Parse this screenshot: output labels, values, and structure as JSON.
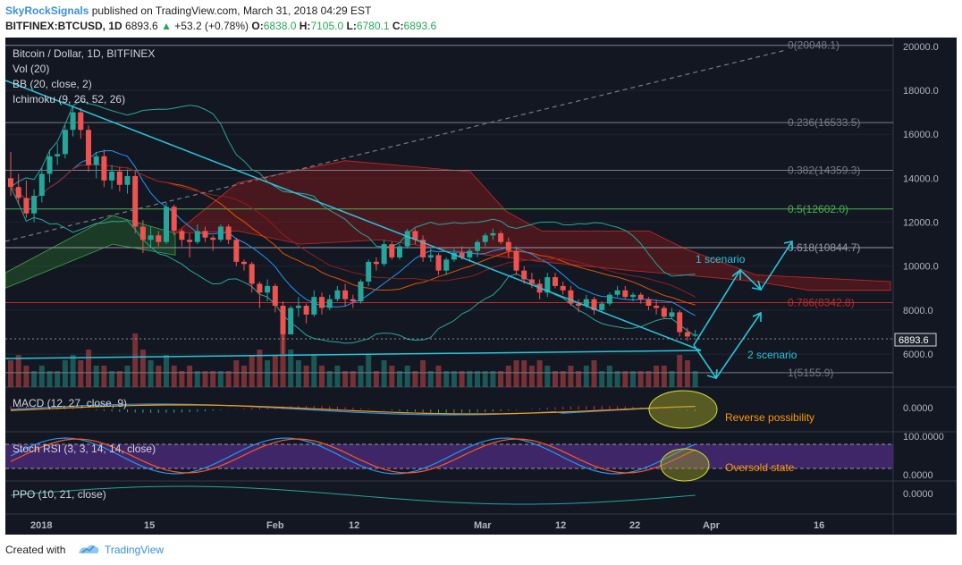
{
  "header": {
    "publisher": "SkyRockSignals",
    "published_text": "published on TradingView.com, March 31, 2018 04:29 EST",
    "symbol": "BITFINEX:BTCUSD, 1D",
    "last": "6893.6",
    "change": "+53.2 (+0.78%)",
    "o_label": "O:",
    "o": "6838.0",
    "h_label": "H:",
    "h": "7105.0",
    "l_label": "L:",
    "l": "6780.1",
    "c_label": "C:",
    "c": "6893.6"
  },
  "legend": {
    "title": "Bitcoin / Dollar, 1D, BITFINEX",
    "vol": "Vol (20)",
    "bb": "BB (20, close, 2)",
    "ichimoku": "Ichimoku (9, 26, 52, 26)"
  },
  "indicators": {
    "macd": "MACD (12, 27, close, 9)",
    "stoch": "Stoch RSI (3, 3, 14, 14, close)",
    "ppo": "PPO (10, 21, close)"
  },
  "annotations": {
    "scenario1": "1 scenario",
    "scenario2": "2 scenario",
    "reverse": "Reverse possibility",
    "oversold": "Oversold state"
  },
  "fib_levels": [
    {
      "label": "0(20048.1)",
      "price": 20048.1,
      "color": "#787b86"
    },
    {
      "label": "0.236(16533.5)",
      "price": 16533.5,
      "color": "#787b86"
    },
    {
      "label": "0.382(14359.3)",
      "price": 14359.3,
      "color": "#787b86"
    },
    {
      "label": "0.5(12602.0)",
      "price": 12602.0,
      "color": "#4caf50"
    },
    {
      "label": "0.618(10844.7)",
      "price": 10844.7,
      "color": "#9598a1"
    },
    {
      "label": "0.786(8342.8)",
      "price": 8342.8,
      "color": "#c62828"
    },
    {
      "label": "1(5155.9)",
      "price": 5155.9,
      "color": "#787b86"
    }
  ],
  "price_axis": {
    "ticks": [
      "20000.0",
      "18000.0",
      "16000.0",
      "14000.0",
      "12000.0",
      "10000.0",
      "8000.0",
      "6000.0"
    ],
    "last_price_label": "6893.6",
    "macd_tick": "0.0000",
    "stoch_ticks": [
      "100.0000",
      "0.0000"
    ],
    "ppo_tick": "0.0000"
  },
  "time_axis": [
    "2018",
    "15",
    "Feb",
    "12",
    "Mar",
    "12",
    "22",
    "Apr",
    "16"
  ],
  "chart_data": {
    "type": "candlestick",
    "title": "Bitcoin / Dollar, 1D, BITFINEX",
    "ylim": [
      4500,
      20400
    ],
    "candles": [
      [
        14000,
        15200,
        13200,
        13600
      ],
      [
        13600,
        14200,
        12800,
        13100
      ],
      [
        13100,
        13900,
        12200,
        12400
      ],
      [
        12400,
        13500,
        12000,
        13200
      ],
      [
        13200,
        14500,
        12900,
        14200
      ],
      [
        14200,
        15300,
        13800,
        15000
      ],
      [
        15000,
        15600,
        14600,
        15100
      ],
      [
        15100,
        16400,
        14900,
        16200
      ],
      [
        16200,
        17300,
        15900,
        17000
      ],
      [
        17000,
        17200,
        15800,
        16200
      ],
      [
        16200,
        16400,
        14300,
        14600
      ],
      [
        14600,
        15200,
        14000,
        15000
      ],
      [
        15000,
        15300,
        13600,
        13900
      ],
      [
        13900,
        14600,
        13500,
        14300
      ],
      [
        14300,
        14500,
        13400,
        13700
      ],
      [
        13700,
        14400,
        13300,
        14100
      ],
      [
        14100,
        14300,
        11500,
        11800
      ],
      [
        11800,
        12100,
        10600,
        11200
      ],
      [
        11200,
        11800,
        10800,
        11400
      ],
      [
        11400,
        11600,
        10900,
        11100
      ],
      [
        11100,
        12900,
        11000,
        12700
      ],
      [
        12700,
        12800,
        11400,
        11600
      ],
      [
        11600,
        11700,
        10900,
        11200
      ],
      [
        11200,
        11500,
        10400,
        11100
      ],
      [
        11100,
        11900,
        11000,
        11600
      ],
      [
        11600,
        11800,
        11100,
        11300
      ],
      [
        11300,
        11400,
        10700,
        11200
      ],
      [
        11200,
        11900,
        11100,
        11800
      ],
      [
        11800,
        11900,
        11000,
        11200
      ],
      [
        11200,
        11300,
        10000,
        10200
      ],
      [
        10200,
        10300,
        9800,
        10100
      ],
      [
        10100,
        10200,
        8800,
        9200
      ],
      [
        9200,
        9300,
        8100,
        8800
      ],
      [
        8800,
        9400,
        8400,
        9100
      ],
      [
        9100,
        9200,
        7900,
        8200
      ],
      [
        8200,
        8400,
        6000,
        6900
      ],
      [
        6900,
        8200,
        6900,
        8100
      ],
      [
        8100,
        8600,
        7700,
        8200
      ],
      [
        8200,
        8300,
        7400,
        7800
      ],
      [
        7800,
        8900,
        7700,
        8600
      ],
      [
        8600,
        8800,
        7800,
        8100
      ],
      [
        8100,
        8700,
        8000,
        8500
      ],
      [
        8500,
        9100,
        8400,
        8900
      ],
      [
        8900,
        9200,
        8200,
        8500
      ],
      [
        8500,
        8700,
        8100,
        8400
      ],
      [
        8400,
        9400,
        8300,
        9300
      ],
      [
        9300,
        10300,
        9100,
        10200
      ],
      [
        10200,
        10400,
        9800,
        10100
      ],
      [
        10100,
        11200,
        10000,
        11000
      ],
      [
        11000,
        11100,
        10300,
        10400
      ],
      [
        10400,
        11000,
        10300,
        10900
      ],
      [
        10900,
        11700,
        10800,
        11600
      ],
      [
        11600,
        11700,
        11000,
        11200
      ],
      [
        11200,
        11400,
        10200,
        10400
      ],
      [
        10400,
        10800,
        10200,
        10500
      ],
      [
        10500,
        10600,
        9600,
        9800
      ],
      [
        9800,
        10400,
        9600,
        10300
      ],
      [
        10300,
        10800,
        10200,
        10600
      ],
      [
        10600,
        10900,
        10300,
        10400
      ],
      [
        10400,
        10800,
        10200,
        10700
      ],
      [
        10700,
        11200,
        10400,
        11100
      ],
      [
        11100,
        11500,
        10900,
        11400
      ],
      [
        11400,
        11700,
        11200,
        11500
      ],
      [
        11500,
        11600,
        11000,
        11100
      ],
      [
        11100,
        11300,
        10400,
        10700
      ],
      [
        10700,
        10900,
        9600,
        9800
      ],
      [
        9800,
        10000,
        9200,
        9400
      ],
      [
        9400,
        9700,
        9000,
        9200
      ],
      [
        9200,
        9400,
        8500,
        8800
      ],
      [
        8800,
        9700,
        8600,
        9500
      ],
      [
        9500,
        9700,
        9000,
        9100
      ],
      [
        9100,
        9300,
        8700,
        8900
      ],
      [
        8900,
        9100,
        8200,
        8300
      ],
      [
        8300,
        8500,
        7900,
        8200
      ],
      [
        8200,
        8700,
        8100,
        8500
      ],
      [
        8500,
        8600,
        7800,
        8000
      ],
      [
        8000,
        8400,
        7900,
        8300
      ],
      [
        8300,
        8800,
        8200,
        8700
      ],
      [
        8700,
        9100,
        8600,
        8900
      ],
      [
        8900,
        9100,
        8500,
        8600
      ],
      [
        8600,
        8800,
        8400,
        8700
      ],
      [
        8700,
        8800,
        8300,
        8500
      ],
      [
        8500,
        8600,
        8000,
        8200
      ],
      [
        8200,
        8500,
        7800,
        8100
      ],
      [
        8100,
        8200,
        7600,
        7700
      ],
      [
        7700,
        8100,
        7600,
        7900
      ],
      [
        7900,
        8000,
        6800,
        7000
      ],
      [
        7000,
        7200,
        6600,
        6800
      ],
      [
        6838,
        7105,
        6780,
        6894
      ]
    ],
    "volume_relative": [
      0.5,
      0.6,
      0.4,
      0.3,
      0.4,
      0.3,
      0.3,
      0.5,
      0.6,
      0.5,
      0.7,
      0.4,
      0.4,
      0.3,
      0.3,
      0.4,
      1.0,
      0.7,
      0.5,
      0.4,
      0.6,
      0.4,
      0.3,
      0.4,
      0.3,
      0.3,
      0.3,
      0.3,
      0.3,
      0.5,
      0.4,
      0.6,
      0.7,
      0.5,
      0.6,
      1.0,
      0.7,
      0.5,
      0.4,
      0.6,
      0.4,
      0.3,
      0.4,
      0.3,
      0.3,
      0.4,
      0.6,
      0.3,
      0.5,
      0.4,
      0.3,
      0.4,
      0.3,
      0.5,
      0.3,
      0.4,
      0.3,
      0.3,
      0.3,
      0.3,
      0.3,
      0.3,
      0.3,
      0.3,
      0.4,
      0.5,
      0.5,
      0.4,
      0.5,
      0.4,
      0.3,
      0.3,
      0.4,
      0.3,
      0.4,
      0.5,
      0.3,
      0.4,
      0.3,
      0.3,
      0.3,
      0.3,
      0.3,
      0.4,
      0.4,
      0.3,
      0.6,
      0.5,
      0.3
    ]
  }
}
